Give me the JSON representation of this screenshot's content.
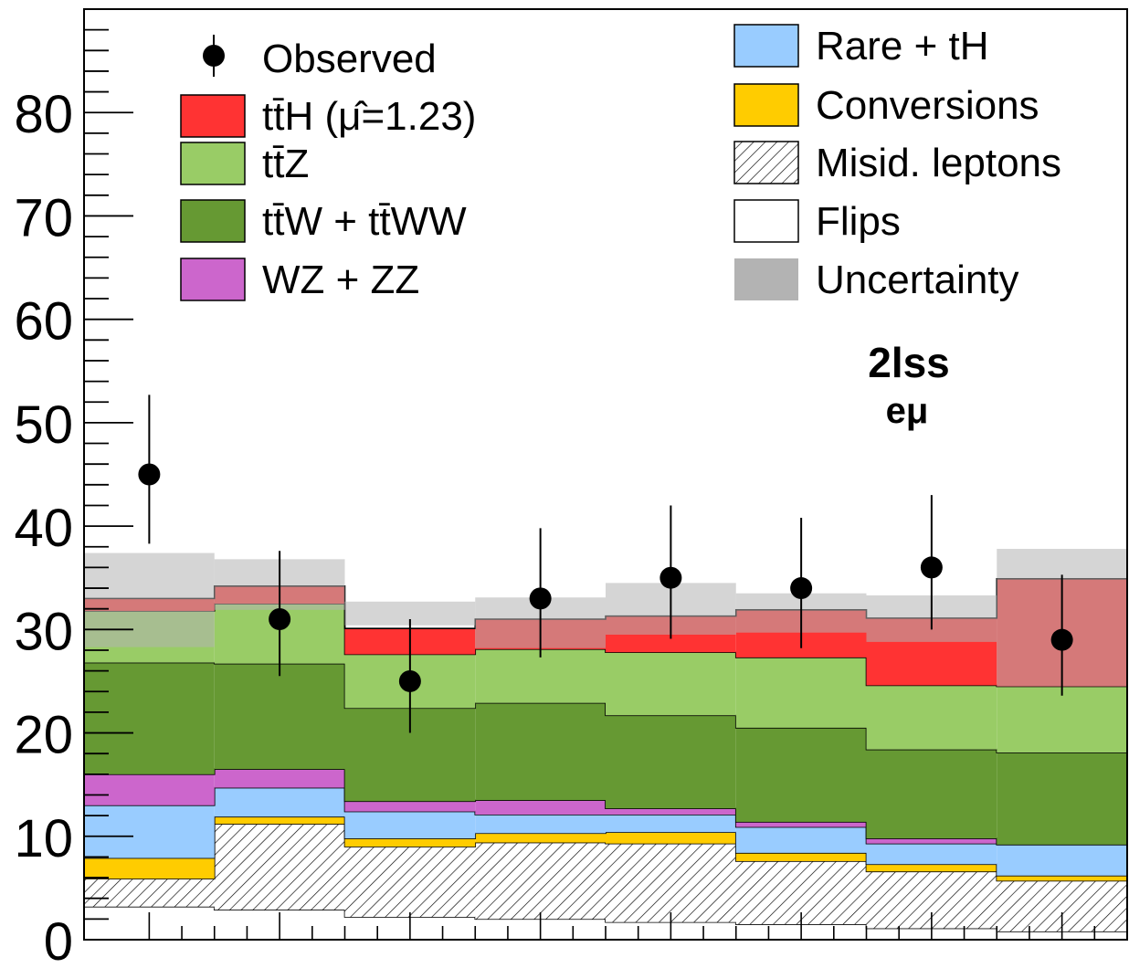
{
  "chart_data": {
    "type": "bar",
    "stacked": true,
    "categories": [
      "1",
      "2",
      "3",
      "4",
      "5",
      "6",
      "7",
      "8"
    ],
    "ylim": [
      0,
      90
    ],
    "yticks": [
      "0",
      "10",
      "20",
      "30",
      "40",
      "50",
      "60",
      "70",
      "80"
    ],
    "yticks_values": [
      0,
      10,
      20,
      30,
      40,
      50,
      60,
      70,
      80
    ],
    "grid": false,
    "legend_position": "top",
    "annotation": {
      "line1": "2lss",
      "line2": "eμ"
    },
    "colors": {
      "ttH": "#ff3333",
      "ttZ": "#99cc66",
      "ttW": "#669933",
      "WZ": "#cc66cc",
      "Rare": "#99ccff",
      "Conversions": "#ffcc00",
      "Misid": "#ffffff",
      "Flips": "#ffffff",
      "Uncertainty": "#b3b3b3",
      "Observed": "#000000"
    },
    "series": [
      {
        "key": "Flips",
        "values": [
          3.2,
          2.9,
          2.2,
          2.0,
          1.7,
          1.5,
          1.1,
          0.8
        ]
      },
      {
        "key": "Misid",
        "values": [
          2.7,
          8.3,
          6.8,
          7.4,
          7.6,
          6.1,
          5.5,
          4.9
        ]
      },
      {
        "key": "Conversions",
        "values": [
          2.0,
          0.7,
          0.8,
          0.9,
          1.1,
          0.8,
          0.7,
          0.5
        ]
      },
      {
        "key": "Rare",
        "values": [
          5.1,
          2.8,
          2.6,
          1.8,
          1.7,
          2.5,
          2.0,
          3.0
        ]
      },
      {
        "key": "WZ",
        "values": [
          3.0,
          1.8,
          1.0,
          1.4,
          0.6,
          0.5,
          0.5,
          0.0
        ]
      },
      {
        "key": "ttW",
        "values": [
          10.8,
          10.2,
          9.0,
          9.4,
          9.0,
          9.1,
          8.6,
          8.9
        ]
      },
      {
        "key": "ttZ",
        "values": [
          5.0,
          5.8,
          5.2,
          5.2,
          6.1,
          6.8,
          6.2,
          6.4
        ]
      },
      {
        "key": "ttH",
        "values": [
          1.2,
          1.7,
          2.5,
          2.9,
          3.5,
          4.6,
          6.5,
          10.4
        ]
      }
    ],
    "uncertainty": {
      "low": [
        28.3,
        31.9,
        30.4,
        28.2,
        29.5,
        29.7,
        28.8,
        24.5
      ],
      "high": [
        37.4,
        36.8,
        32.7,
        33.1,
        34.5,
        33.5,
        33.3,
        37.8
      ]
    },
    "observed": {
      "values": [
        45,
        31,
        25,
        33,
        35,
        34,
        36,
        29
      ],
      "err_low": [
        38.3,
        25.5,
        20.0,
        27.3,
        29.1,
        28.2,
        30.0,
        23.6
      ],
      "err_high": [
        52.7,
        37.6,
        31.0,
        39.8,
        42.0,
        40.8,
        43.0,
        35.3
      ]
    },
    "legend": [
      {
        "key": "Observed",
        "label": "Observed",
        "style": "marker"
      },
      {
        "key": "ttH",
        "label": "tt̄H (μ̂=1.23)",
        "style": "box"
      },
      {
        "key": "ttZ",
        "label": "tt̄Z",
        "style": "box"
      },
      {
        "key": "ttW",
        "label": "tt̄W + tt̄WW",
        "style": "box"
      },
      {
        "key": "WZ",
        "label": "WZ + ZZ",
        "style": "box"
      },
      {
        "key": "Rare",
        "label": "Rare + tH",
        "style": "box"
      },
      {
        "key": "Conversions",
        "label": "Conversions",
        "style": "box"
      },
      {
        "key": "Misid",
        "label": "Misid. leptons",
        "style": "hatch"
      },
      {
        "key": "Flips",
        "label": "Flips",
        "style": "box"
      },
      {
        "key": "Uncertainty",
        "label": "Uncertainty",
        "style": "fill"
      }
    ]
  }
}
